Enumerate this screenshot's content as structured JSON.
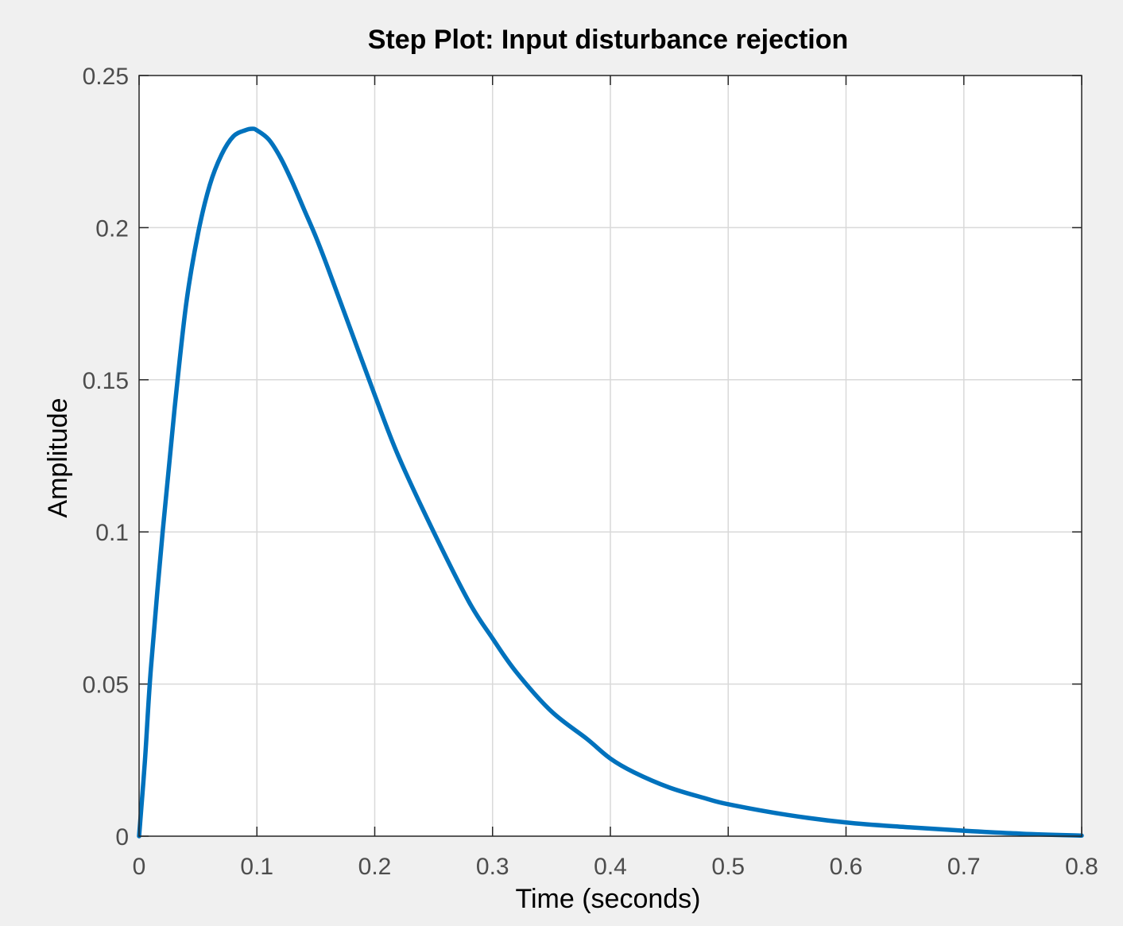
{
  "chart_data": {
    "type": "line",
    "title": "Step Plot: Input disturbance rejection",
    "xlabel": "Time (seconds)",
    "ylabel": "Amplitude",
    "xlim": [
      0,
      0.8
    ],
    "ylim": [
      0,
      0.25
    ],
    "x_ticks": [
      0,
      0.1,
      0.2,
      0.3,
      0.4,
      0.5,
      0.6,
      0.7,
      0.8
    ],
    "x_tick_labels": [
      "0",
      "0.1",
      "0.2",
      "0.3",
      "0.4",
      "0.5",
      "0.6",
      "0.7",
      "0.8"
    ],
    "y_ticks": [
      0,
      0.05,
      0.1,
      0.15,
      0.2,
      0.25
    ],
    "y_tick_labels": [
      "0",
      "0.05",
      "0.1",
      "0.15",
      "0.2",
      "0.25"
    ],
    "grid": true,
    "series": [
      {
        "color": "#0072bd",
        "x": [
          0,
          0.005,
          0.01,
          0.02,
          0.03,
          0.04,
          0.05,
          0.06,
          0.07,
          0.08,
          0.09,
          0.096,
          0.1,
          0.11,
          0.12,
          0.13,
          0.14,
          0.15,
          0.16,
          0.18,
          0.2,
          0.22,
          0.25,
          0.28,
          0.3,
          0.32,
          0.35,
          0.38,
          0.4,
          0.42,
          0.45,
          0.48,
          0.5,
          0.55,
          0.6,
          0.65,
          0.7,
          0.75,
          0.8
        ],
        "y": [
          0,
          0.025,
          0.055,
          0.1,
          0.14,
          0.175,
          0.198,
          0.214,
          0.224,
          0.23,
          0.232,
          0.2325,
          0.232,
          0.229,
          0.223,
          0.215,
          0.206,
          0.197,
          0.187,
          0.166,
          0.145,
          0.125,
          0.1,
          0.077,
          0.065,
          0.054,
          0.041,
          0.032,
          0.0255,
          0.021,
          0.016,
          0.0125,
          0.0105,
          0.007,
          0.0045,
          0.003,
          0.0018,
          0.0008,
          0.0002
        ]
      }
    ]
  },
  "colors": {
    "figure_background": "#f0f0f0",
    "axes_background": "#ffffff",
    "axes_edge": "#262626",
    "grid": "#d9d9d9",
    "tick_label": "#4d4d4d",
    "line": "#0072bd"
  }
}
